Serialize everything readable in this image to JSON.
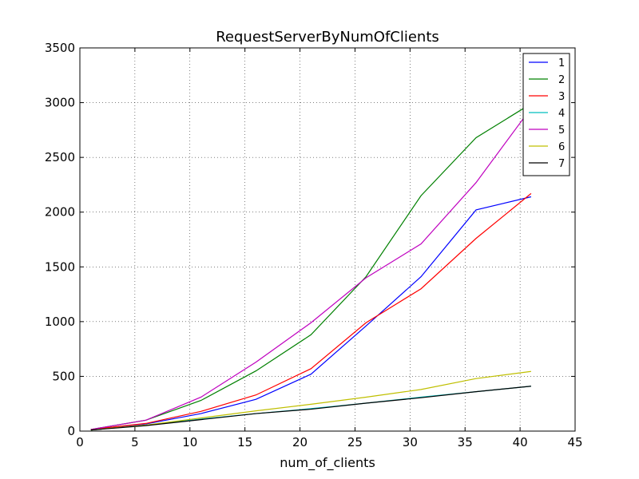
{
  "chart_data": {
    "type": "line",
    "title": "RequestServerByNumOfClients",
    "xlabel": "num_of_clients",
    "ylabel": "",
    "xlim": [
      0,
      45
    ],
    "ylim": [
      0,
      3500
    ],
    "xticks": [
      0,
      5,
      10,
      15,
      20,
      25,
      30,
      35,
      40,
      45
    ],
    "yticks": [
      0,
      500,
      1000,
      1500,
      2000,
      2500,
      3000,
      3500
    ],
    "grid": true,
    "legend_position": "top-right",
    "x": [
      1,
      6,
      11,
      16,
      21,
      26,
      31,
      36,
      41
    ],
    "series": [
      {
        "name": "1",
        "color": "#0000ff",
        "values": [
          15,
          65,
          160,
          290,
          520,
          960,
          1410,
          2020,
          2140
        ]
      },
      {
        "name": "2",
        "color": "#008000",
        "values": [
          15,
          100,
          280,
          550,
          880,
          1410,
          2150,
          2680,
          2990
        ]
      },
      {
        "name": "3",
        "color": "#ff0000",
        "values": [
          15,
          70,
          180,
          330,
          570,
          990,
          1300,
          1760,
          2170
        ]
      },
      {
        "name": "4",
        "color": "#00bfbf",
        "values": [
          10,
          55,
          110,
          160,
          205,
          255,
          310,
          360,
          410
        ]
      },
      {
        "name": "5",
        "color": "#bf00bf",
        "values": [
          15,
          100,
          310,
          630,
          990,
          1400,
          1710,
          2270,
          2950
        ]
      },
      {
        "name": "6",
        "color": "#bfbf00",
        "values": [
          10,
          55,
          120,
          185,
          245,
          310,
          380,
          480,
          545
        ]
      },
      {
        "name": "7",
        "color": "#000000",
        "values": [
          10,
          50,
          105,
          160,
          200,
          255,
          305,
          360,
          410
        ]
      }
    ]
  }
}
